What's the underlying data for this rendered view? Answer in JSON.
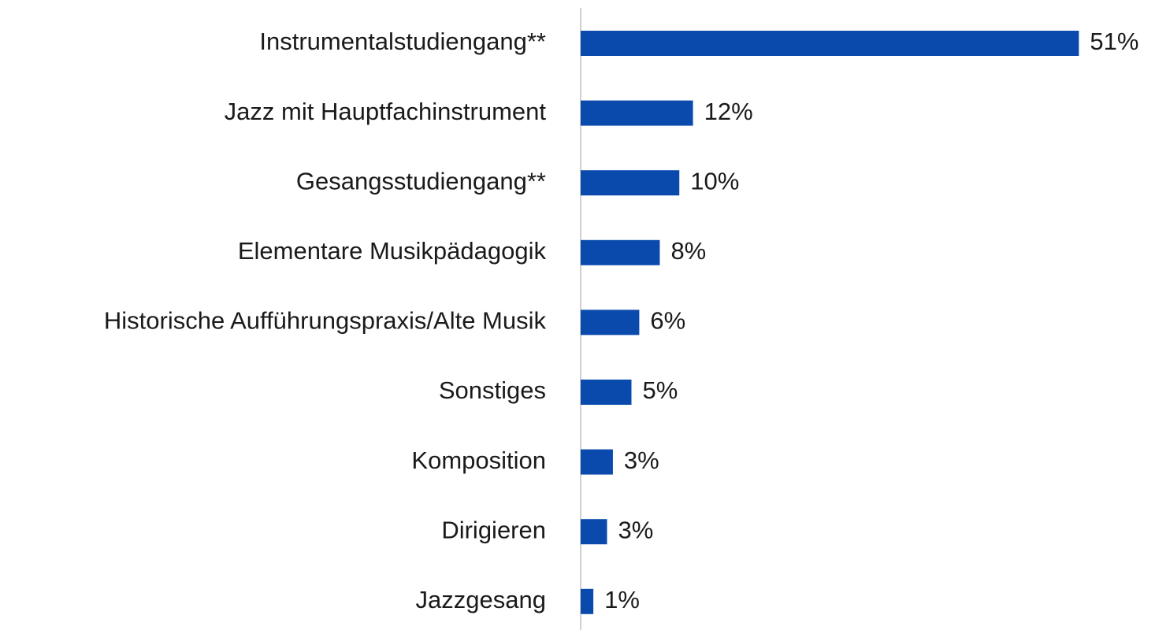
{
  "chart_data": {
    "type": "bar",
    "orientation": "horizontal",
    "categories": [
      "Instrumentalstudiengang**",
      "Jazz mit Hauptfachinstrument",
      "Gesangsstudiengang**",
      "Elementare Musikpädagogik",
      "Historische Aufführungspraxis/Alte Musik",
      "Sonstiges",
      "Komposition",
      "Dirigieren",
      "Jazzgesang"
    ],
    "values": [
      51,
      11.5,
      10.1,
      8.1,
      6.0,
      5.2,
      3.3,
      2.7,
      1.3
    ],
    "value_labels": [
      "51%",
      "12%",
      "10%",
      "8%",
      "6%",
      "5%",
      "3%",
      "3%",
      "1%"
    ],
    "color": "#0a4aad",
    "xlim": [
      0,
      55
    ]
  }
}
